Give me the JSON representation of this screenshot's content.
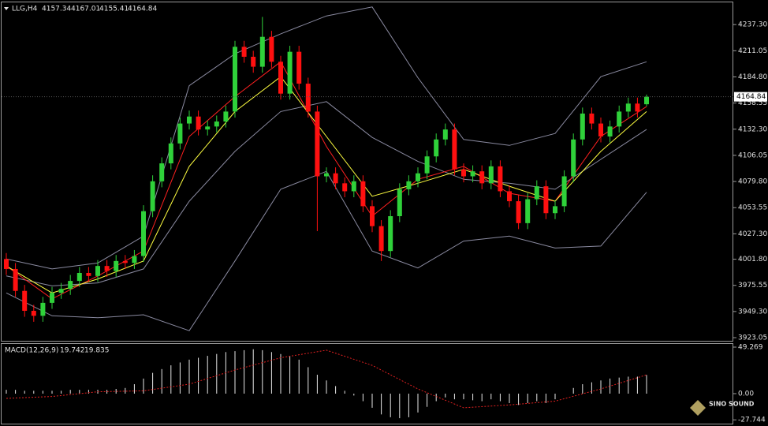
{
  "chart_data": [
    {
      "type": "candlestick",
      "title": "LLG,H4",
      "up_color": "#2fd13a",
      "down_color": "#ff1010",
      "open": [
        4002,
        3992,
        3970,
        3950,
        3945,
        3958,
        3968,
        3972,
        3980,
        3988,
        3985,
        3995,
        3990,
        4000,
        3998,
        4005,
        4050,
        4080,
        4098,
        4118,
        4138,
        4145,
        4132,
        4135,
        4140,
        4150,
        4215,
        4205,
        4195,
        4225,
        4200,
        4168,
        4210,
        4178,
        4150,
        4085,
        4088,
        4078,
        4070,
        4080,
        4055,
        4035,
        4010,
        4045,
        4072,
        4080,
        4088,
        4105,
        4122,
        4132,
        4092,
        4085,
        4090,
        4078,
        4095,
        4070,
        4060,
        4038,
        4062,
        4075,
        4048,
        4055,
        4085,
        4122,
        4148,
        4138,
        4125,
        4135,
        4150,
        4158,
        4157.34
      ],
      "high": [
        4008,
        3998,
        3976,
        3956,
        3964,
        3974,
        3978,
        3986,
        3994,
        3994,
        4001,
        4001,
        4006,
        4006,
        4011,
        4056,
        4086,
        4104,
        4124,
        4144,
        4151,
        4151,
        4141,
        4146,
        4156,
        4221,
        4221,
        4211,
        4245,
        4231,
        4206,
        4216,
        4216,
        4184,
        4156,
        4094,
        4094,
        4084,
        4086,
        4086,
        4061,
        4041,
        4051,
        4078,
        4086,
        4094,
        4111,
        4128,
        4138,
        4138,
        4098,
        4096,
        4096,
        4101,
        4101,
        4076,
        4066,
        4068,
        4081,
        4081,
        4061,
        4091,
        4128,
        4154,
        4154,
        4144,
        4141,
        4156,
        4164,
        4164,
        4167.01
      ],
      "low": [
        3986,
        3964,
        3944,
        3939,
        3939,
        3952,
        3962,
        3966,
        3974,
        3979,
        3979,
        3984,
        3984,
        3992,
        3992,
        3999,
        4044,
        4074,
        4092,
        4112,
        4132,
        4126,
        4126,
        4129,
        4134,
        4144,
        4199,
        4189,
        4189,
        4194,
        4162,
        4162,
        4172,
        4144,
        4030,
        4079,
        4072,
        4064,
        4064,
        4049,
        4029,
        4000,
        4004,
        4039,
        4066,
        4074,
        4082,
        4099,
        4116,
        4086,
        4079,
        4079,
        4072,
        4072,
        4064,
        4054,
        4032,
        4032,
        4056,
        4042,
        4042,
        4049,
        4079,
        4116,
        4132,
        4119,
        4119,
        4129,
        4144,
        4144,
        4155.41
      ],
      "close": [
        3992,
        3970,
        3950,
        3945,
        3958,
        3968,
        3972,
        3980,
        3988,
        3985,
        3995,
        3990,
        4000,
        3998,
        4005,
        4050,
        4080,
        4098,
        4118,
        4138,
        4145,
        4132,
        4135,
        4140,
        4150,
        4215,
        4205,
        4195,
        4225,
        4200,
        4168,
        4210,
        4178,
        4150,
        4085,
        4088,
        4078,
        4070,
        4080,
        4055,
        4035,
        4010,
        4045,
        4072,
        4080,
        4088,
        4105,
        4122,
        4132,
        4092,
        4085,
        4090,
        4078,
        4095,
        4070,
        4060,
        4038,
        4062,
        4075,
        4048,
        4055,
        4085,
        4122,
        4148,
        4138,
        4125,
        4135,
        4150,
        4158,
        4150,
        4164.84
      ],
      "lines": [
        {
          "color": "#8a8aa0",
          "x": [
            0,
            5,
            10,
            15,
            20,
            25,
            30,
            35,
            40,
            45,
            50,
            55,
            60,
            65,
            70
          ],
          "values": [
            4002,
            3992,
            3998,
            4025,
            4176,
            4208,
            4228,
            4246,
            4255,
            4184,
            4122,
            4116,
            4128,
            4185,
            4200
          ]
        },
        {
          "color": "#8a8aa0",
          "x": [
            0,
            5,
            10,
            15,
            20,
            25,
            30,
            35,
            40,
            45,
            50,
            55,
            60,
            65,
            70
          ],
          "values": [
            3985,
            3975,
            3978,
            3992,
            4060,
            4110,
            4150,
            4160,
            4124,
            4100,
            4082,
            4078,
            4072,
            4102,
            4132
          ]
        },
        {
          "color": "#8a8aa0",
          "x": [
            0,
            5,
            10,
            15,
            20,
            25,
            30,
            35,
            40,
            45,
            50,
            55,
            60,
            65,
            70
          ],
          "values": [
            3968,
            3945,
            3943,
            3946,
            3930,
            4000,
            4072,
            4090,
            4010,
            3993,
            4020,
            4025,
            4013,
            4015,
            4069
          ]
        },
        {
          "color": "#ff2020",
          "x": [
            0,
            5,
            10,
            15,
            20,
            25,
            30,
            35,
            40,
            45,
            50,
            55,
            60,
            65,
            70
          ],
          "values": [
            3995,
            3962,
            3985,
            4010,
            4125,
            4165,
            4200,
            4115,
            4045,
            4082,
            4095,
            4068,
            4060,
            4125,
            4155
          ]
        },
        {
          "color": "#ffff40",
          "x": [
            0,
            5,
            10,
            15,
            20,
            25,
            30,
            35,
            40,
            45,
            50,
            55,
            60,
            65,
            70
          ],
          "values": [
            3995,
            3968,
            3982,
            4000,
            4095,
            4150,
            4185,
            4125,
            4065,
            4078,
            4092,
            4075,
            4060,
            4110,
            4150
          ]
        }
      ],
      "ylim": [
        3919.9,
        4259.6
      ],
      "yticks": [
        {
          "value": 4237.3,
          "label": "4237.30"
        },
        {
          "value": 4211.05,
          "label": "4211.05"
        },
        {
          "value": 4184.8,
          "label": "4184.80"
        },
        {
          "value": 4158.55,
          "label": "4158.55"
        },
        {
          "value": 4132.3,
          "label": "4132.30"
        },
        {
          "value": 4106.05,
          "label": "4106.05"
        },
        {
          "value": 4079.8,
          "label": "4079.80"
        },
        {
          "value": 4053.55,
          "label": "4053.55"
        },
        {
          "value": 4027.3,
          "label": "4027.30"
        },
        {
          "value": 4001.8,
          "label": "4001.80"
        },
        {
          "value": 3975.55,
          "label": "3975.55"
        },
        {
          "value": 3949.3,
          "label": "3949.30"
        },
        {
          "value": 3923.05,
          "label": "3923.05"
        }
      ]
    },
    {
      "type": "macd",
      "title": "MACD(12,26,9)",
      "color": "#e8e8e8",
      "values": [
        4,
        4,
        3,
        3,
        3,
        3,
        3,
        4,
        4,
        4,
        4,
        4,
        5,
        6,
        10,
        16,
        22,
        26,
        30,
        33,
        36,
        38,
        40,
        42,
        44,
        45,
        46,
        47,
        46,
        44,
        42,
        40,
        36,
        28,
        20,
        14,
        8,
        3,
        -2,
        -8,
        -15,
        -22,
        -25,
        -26,
        -25,
        -20,
        -14,
        -8,
        -4,
        -6,
        -6,
        -7,
        -8,
        -6,
        -8,
        -10,
        -12,
        -10,
        -8,
        -10,
        -6,
        0,
        6,
        10,
        12,
        14,
        16,
        17,
        18,
        18,
        19.742
      ],
      "signal": {
        "color": "#e02020",
        "x": [
          0,
          5,
          10,
          15,
          20,
          25,
          30,
          35,
          40,
          45,
          50,
          55,
          60,
          65,
          70
        ],
        "values": [
          -5,
          -3,
          2,
          3,
          10,
          25,
          38,
          46,
          30,
          5,
          -15,
          -12,
          -8,
          5,
          19.835
        ]
      },
      "ylim": [
        -32.6,
        52.6
      ],
      "yticks": [
        {
          "value": 49.269,
          "label": "49.269"
        },
        {
          "value": 0,
          "label": "0.00"
        },
        {
          "value": -27.744,
          "label": "-27.744"
        }
      ]
    }
  ],
  "watermark": "SINO SOUND"
}
